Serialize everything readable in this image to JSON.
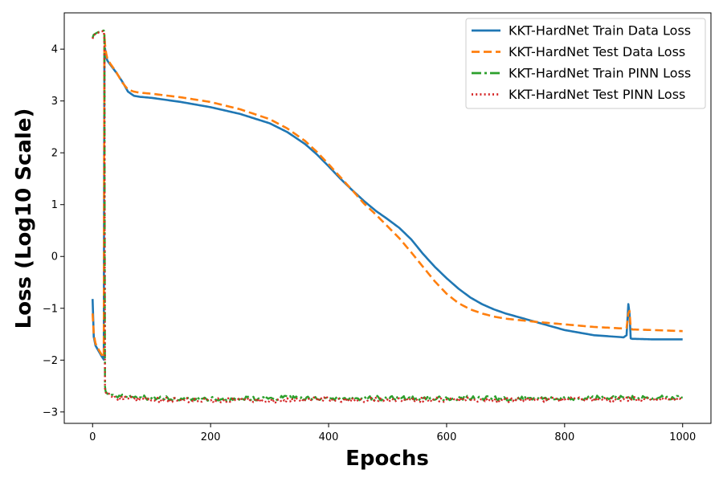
{
  "chart_data": {
    "type": "line",
    "title": "",
    "xlabel": "Epochs",
    "ylabel": "Loss (Log10 Scale)",
    "xlim": [
      -48,
      1048
    ],
    "ylim": [
      -3.22,
      4.7
    ],
    "xticks": [
      0,
      200,
      400,
      600,
      800,
      1000
    ],
    "yticks": [
      -3,
      -2,
      -1,
      0,
      1,
      2,
      3,
      4
    ],
    "xtick_labels": [
      "0",
      "200",
      "400",
      "600",
      "800",
      "1000"
    ],
    "ytick_labels": [
      "−3",
      "−2",
      "−1",
      "0",
      "1",
      "2",
      "3",
      "4"
    ],
    "grid": false,
    "legend_position": "top-right",
    "series": [
      {
        "name": "KKT-HardNet Train Data Loss",
        "color": "#1f77b4",
        "style": "solid",
        "x": [
          0,
          2,
          5,
          10,
          15,
          19,
          20,
          21,
          23,
          25,
          30,
          40,
          50,
          60,
          70,
          80,
          100,
          150,
          200,
          250,
          300,
          330,
          360,
          380,
          400,
          420,
          440,
          460,
          480,
          500,
          520,
          540,
          560,
          580,
          600,
          620,
          640,
          660,
          680,
          700,
          750,
          800,
          850,
          900,
          905,
          908,
          910,
          912,
          915,
          920,
          950,
          1000
        ],
        "y": [
          -0.82,
          -1.55,
          -1.72,
          -1.82,
          -1.92,
          -1.99,
          3.9,
          4.02,
          3.85,
          3.78,
          3.7,
          3.55,
          3.38,
          3.18,
          3.1,
          3.08,
          3.06,
          2.98,
          2.88,
          2.75,
          2.57,
          2.4,
          2.17,
          1.97,
          1.74,
          1.5,
          1.28,
          1.07,
          0.88,
          0.72,
          0.55,
          0.33,
          0.05,
          -0.2,
          -0.42,
          -0.62,
          -0.79,
          -0.92,
          -1.02,
          -1.1,
          -1.26,
          -1.42,
          -1.52,
          -1.56,
          -1.52,
          -0.92,
          -1.1,
          -1.58,
          -1.59,
          -1.59,
          -1.6,
          -1.6
        ]
      },
      {
        "name": "KKT-HardNet Test Data Loss",
        "color": "#ff7f0e",
        "style": "dashed",
        "x": [
          0,
          2,
          5,
          10,
          15,
          19,
          20,
          21,
          23,
          25,
          30,
          40,
          50,
          60,
          70,
          80,
          100,
          150,
          200,
          250,
          300,
          330,
          360,
          380,
          400,
          420,
          440,
          460,
          480,
          500,
          520,
          540,
          560,
          580,
          600,
          620,
          640,
          660,
          680,
          700,
          750,
          800,
          850,
          900,
          905,
          908,
          910,
          912,
          915,
          920,
          950,
          1000
        ],
        "y": [
          -1.1,
          -1.5,
          -1.68,
          -1.79,
          -1.89,
          -1.95,
          4.28,
          4.1,
          3.92,
          3.82,
          3.72,
          3.56,
          3.36,
          3.22,
          3.18,
          3.16,
          3.14,
          3.07,
          2.98,
          2.84,
          2.65,
          2.47,
          2.23,
          2.02,
          1.78,
          1.53,
          1.28,
          1.02,
          0.81,
          0.58,
          0.35,
          0.08,
          -0.2,
          -0.48,
          -0.72,
          -0.9,
          -1.02,
          -1.1,
          -1.16,
          -1.2,
          -1.26,
          -1.31,
          -1.36,
          -1.39,
          -1.38,
          -1.1,
          -1.05,
          -1.38,
          -1.41,
          -1.41,
          -1.42,
          -1.44
        ]
      },
      {
        "name": "KKT-HardNet Train PINN Loss",
        "color": "#2ca02c",
        "style": "dashdot",
        "x": [
          0,
          2,
          5,
          10,
          15,
          19,
          20,
          21,
          22,
          25,
          30,
          40,
          60,
          80,
          100,
          150,
          200,
          250,
          300,
          350,
          400,
          450,
          500,
          550,
          600,
          650,
          700,
          750,
          800,
          850,
          900,
          950,
          1000
        ],
        "y": [
          4.22,
          4.28,
          4.3,
          4.33,
          4.35,
          4.36,
          4.28,
          -2.5,
          -2.6,
          -2.65,
          -2.68,
          -2.7,
          -2.71,
          -2.72,
          -2.73,
          -2.74,
          -2.74,
          -2.74,
          -2.73,
          -2.74,
          -2.73,
          -2.74,
          -2.73,
          -2.74,
          -2.73,
          -2.73,
          -2.74,
          -2.73,
          -2.73,
          -2.73,
          -2.72,
          -2.73,
          -2.72
        ]
      },
      {
        "name": "KKT-HardNet Test PINN Loss",
        "color": "#d62728",
        "style": "dotted",
        "x": [
          0,
          2,
          5,
          10,
          15,
          19,
          20,
          21,
          22,
          25,
          30,
          40,
          60,
          80,
          100,
          150,
          200,
          250,
          300,
          350,
          400,
          450,
          500,
          550,
          600,
          650,
          700,
          750,
          800,
          850,
          900,
          950,
          1000
        ],
        "y": [
          4.2,
          4.27,
          4.29,
          4.32,
          4.34,
          4.35,
          4.2,
          -2.55,
          -2.62,
          -2.66,
          -2.69,
          -2.72,
          -2.74,
          -2.76,
          -2.77,
          -2.77,
          -2.78,
          -2.77,
          -2.78,
          -2.77,
          -2.76,
          -2.77,
          -2.76,
          -2.77,
          -2.76,
          -2.76,
          -2.77,
          -2.76,
          -2.76,
          -2.76,
          -2.75,
          -2.76,
          -2.75
        ]
      }
    ]
  }
}
